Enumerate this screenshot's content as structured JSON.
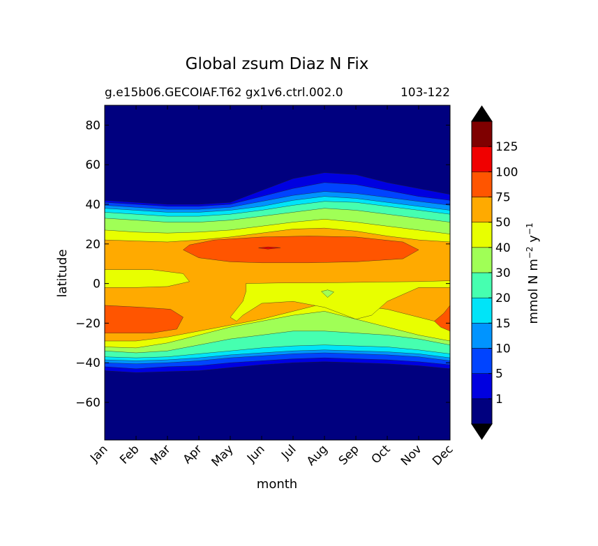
{
  "chart_data": {
    "type": "heatmap",
    "subtype": "filled-contour",
    "title": "Global zsum Diaz N Fix",
    "subtitle_left": "g.e15b06.GECOIAF.T62 gx1v6.ctrl.002.0",
    "subtitle_right": "103-122",
    "xlabel": "month",
    "ylabel": "latitude",
    "x_ticks": [
      "Jan",
      "Feb",
      "Mar",
      "Apr",
      "May",
      "Jun",
      "Jul",
      "Aug",
      "Sep",
      "Oct",
      "Nov",
      "Dec"
    ],
    "y_ticks": [
      "80",
      "60",
      "40",
      "20",
      "0",
      "−20",
      "−40",
      "−60"
    ],
    "y_tick_values": [
      80,
      60,
      40,
      20,
      0,
      -20,
      -40,
      -60
    ],
    "ylim": [
      -79,
      90
    ],
    "xlim": [
      0,
      11
    ],
    "colorbar": {
      "label_text": "mmol N m",
      "label_sup1": "−2",
      "label_mid": " y",
      "label_sup2": "−1",
      "levels": [
        1,
        5,
        10,
        15,
        20,
        30,
        40,
        50,
        75,
        100,
        125
      ],
      "level_labels": [
        "1",
        "5",
        "10",
        "15",
        "20",
        "30",
        "40",
        "50",
        "75",
        "100",
        "125"
      ],
      "colors": [
        "#00007f",
        "#0000e0",
        "#0044ff",
        "#0094ff",
        "#00e4f8",
        "#46ffb0",
        "#a0ff56",
        "#e8ff00",
        "#ffaa00",
        "#ff5500",
        "#f00000",
        "#7f0000"
      ],
      "extend": "both",
      "over_color": "#000000",
      "under_color": "#000000"
    },
    "contour_boundaries": {
      "description": "latitude (degrees) of lower/upper edge of each level band, per month Jan..Dec",
      "south": {
        "1": [
          -44,
          -45,
          -44.5,
          -44,
          -42.5,
          -41,
          -40,
          -39.5,
          -40,
          -40.5,
          -41.5,
          -43
        ],
        "5": [
          -42,
          -43,
          -42,
          -41.5,
          -40,
          -39,
          -38,
          -37.5,
          -38,
          -38.5,
          -39.5,
          -41
        ],
        "10": [
          -40,
          -40.5,
          -40,
          -39,
          -37.5,
          -36.5,
          -35.5,
          -35,
          -35.5,
          -36,
          -37,
          -39
        ],
        "15": [
          -38.5,
          -39,
          -38.5,
          -37.5,
          -36,
          -35,
          -34,
          -33.5,
          -34,
          -34.5,
          -35.5,
          -37.5
        ],
        "20": [
          -37,
          -37.5,
          -37,
          -35.5,
          -34,
          -32.5,
          -31.5,
          -31,
          -31.5,
          -32,
          -33.5,
          -35.5
        ],
        "30": [
          -34,
          -35,
          -34,
          -31,
          -28,
          -26,
          -24,
          -24,
          -25,
          -26,
          -28,
          -31
        ],
        "40": [
          -32,
          -32.5,
          -30,
          -26,
          -22,
          -19,
          -16,
          -14,
          -18,
          -22,
          -26,
          -29
        ],
        "50": [
          -29,
          -29,
          -27,
          -24,
          -21,
          -18,
          -14,
          -10,
          -11,
          -13,
          -17,
          -21
        ]
      },
      "north": {
        "1": [
          42,
          41,
          40,
          40,
          41,
          47,
          53,
          56,
          55,
          51,
          48,
          45
        ],
        "5": [
          41,
          40,
          39,
          39,
          40,
          44,
          48,
          51,
          50,
          47,
          44,
          42
        ],
        "10": [
          39.5,
          38.5,
          37.5,
          37.5,
          38.5,
          41.5,
          44.5,
          46.5,
          45.5,
          43.5,
          41.5,
          39.5
        ],
        "15": [
          38,
          37,
          36,
          36,
          37,
          39,
          42,
          44,
          43,
          41,
          39,
          37
        ],
        "20": [
          36,
          35,
          34,
          34,
          35,
          37,
          39.5,
          41.5,
          41,
          39,
          37,
          35
        ],
        "30": [
          33,
          32,
          31,
          31,
          32,
          34,
          36,
          38,
          37,
          35,
          33,
          31
        ],
        "40": [
          27,
          26,
          25.5,
          26,
          27,
          29,
          31,
          32.5,
          31,
          29,
          27,
          25
        ],
        "50": [
          22,
          21.5,
          21,
          22,
          23.5,
          25.5,
          27.5,
          28,
          26.5,
          24,
          22,
          21
        ]
      }
    }
  }
}
